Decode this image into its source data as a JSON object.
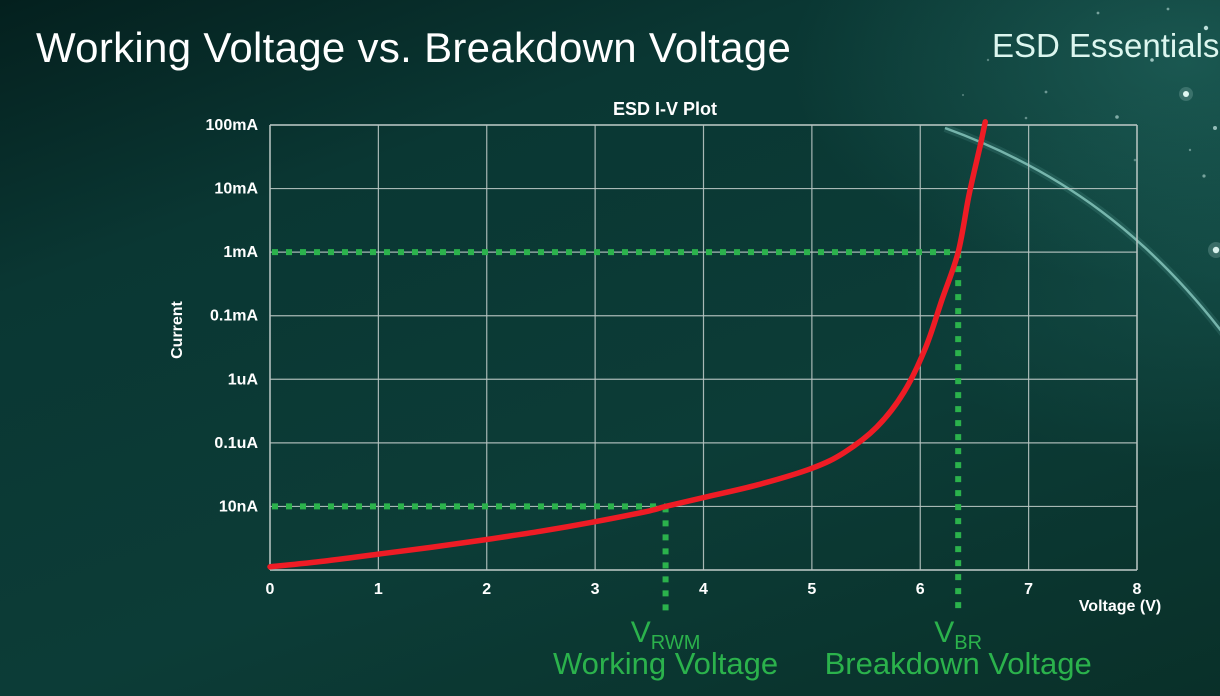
{
  "page": {
    "title": "Working Voltage vs. Breakdown Voltage",
    "brand": "ESD Essentials"
  },
  "chart_data": {
    "type": "line",
    "title": "ESD I-V Plot",
    "xlabel": "Voltage (V)",
    "ylabel": "Current",
    "xlim": [
      0,
      8
    ],
    "x_ticks": [
      0,
      1,
      2,
      3,
      4,
      5,
      6,
      7,
      8
    ],
    "y_scale": "log",
    "y_tick_labels_top_to_bottom": [
      "100mA",
      "10mA",
      "1mA",
      "0.1mA",
      "1uA",
      "0.1uA",
      "10nA"
    ],
    "grid": true,
    "legend": "none",
    "series": [
      {
        "name": "I-V curve",
        "color": "#ee1c25",
        "points_v_row": [
          [
            0,
            0.05
          ],
          [
            0.5,
            0.14
          ],
          [
            1,
            0.25
          ],
          [
            1.5,
            0.36
          ],
          [
            2,
            0.48
          ],
          [
            2.5,
            0.61
          ],
          [
            3,
            0.76
          ],
          [
            3.5,
            0.93
          ],
          [
            3.65,
            1.0
          ],
          [
            4,
            1.14
          ],
          [
            4.5,
            1.34
          ],
          [
            5,
            1.6
          ],
          [
            5.3,
            1.85
          ],
          [
            5.6,
            2.25
          ],
          [
            5.85,
            2.8
          ],
          [
            6.05,
            3.5
          ],
          [
            6.2,
            4.25
          ],
          [
            6.35,
            5.0
          ],
          [
            6.45,
            5.9
          ],
          [
            6.55,
            6.65
          ],
          [
            6.6,
            7.05
          ]
        ]
      }
    ],
    "markers": [
      {
        "id": "vrwm",
        "voltage": 3.65,
        "current_label": "10nA",
        "row": 1
      },
      {
        "id": "vbr",
        "voltage": 6.35,
        "current_label": "1mA",
        "row": 5
      }
    ],
    "annotations": [
      {
        "id": "vrwm",
        "symbol": "V",
        "subscript": "RWM",
        "caption": "Working Voltage",
        "voltage": 3.65
      },
      {
        "id": "vbr",
        "symbol": "V",
        "subscript": "BR",
        "caption": "Breakdown Voltage",
        "voltage": 6.35
      }
    ],
    "colors": {
      "grid": "#b9c6c3",
      "curve": "#ee1c25",
      "marker": "#2bb24c",
      "text": "#ffffff",
      "background": "#0a3733"
    }
  }
}
